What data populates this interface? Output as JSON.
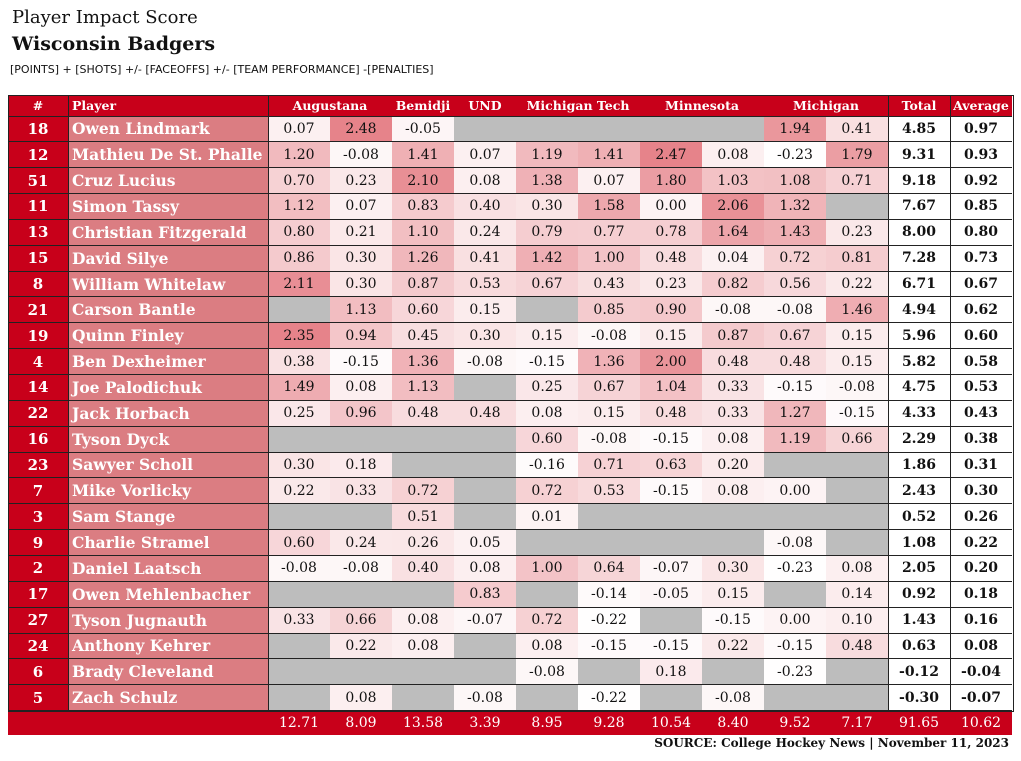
{
  "header": {
    "title": "Player Impact Score",
    "team": "Wisconsin Badgers",
    "formula": "[POINTS] + [SHOTS] +/- [FACEOFFS] +/- [TEAM PERFORMANCE] -[PENALTIES]"
  },
  "columns": {
    "number": "#",
    "player": "Player",
    "opponents": [
      "Augustana",
      "Bemidji",
      "UND",
      "Michigan Tech",
      "Minnesota",
      "Michigan"
    ],
    "total": "Total",
    "average": "Average"
  },
  "colors": {
    "header_bg": "#c8001a",
    "number_bg": "#c8001a",
    "name_bg": "#db7d82",
    "na_bg": "#bdbdbd",
    "scale_high": "#e6838a",
    "scale_low": "#ffffff"
  },
  "rows": [
    {
      "num": "18",
      "name": "Owen Lindmark",
      "games": [
        "0.07",
        "2.48",
        "-0.05",
        null,
        null,
        null,
        null,
        null,
        "1.94",
        "0.41"
      ],
      "total": "4.85",
      "avg": "0.97"
    },
    {
      "num": "12",
      "name": "Mathieu De St. Phalle",
      "games": [
        "1.20",
        "-0.08",
        "1.41",
        "0.07",
        "1.19",
        "1.41",
        "2.47",
        "0.08",
        "-0.23",
        "1.79"
      ],
      "total": "9.31",
      "avg": "0.93"
    },
    {
      "num": "51",
      "name": "Cruz Lucius",
      "games": [
        "0.70",
        "0.23",
        "2.10",
        "0.08",
        "1.38",
        "0.07",
        "1.80",
        "1.03",
        "1.08",
        "0.71"
      ],
      "total": "9.18",
      "avg": "0.92"
    },
    {
      "num": "11",
      "name": "Simon Tassy",
      "games": [
        "1.12",
        "0.07",
        "0.83",
        "0.40",
        "0.30",
        "1.58",
        "0.00",
        "2.06",
        "1.32",
        null
      ],
      "total": "7.67",
      "avg": "0.85"
    },
    {
      "num": "13",
      "name": "Christian Fitzgerald",
      "games": [
        "0.80",
        "0.21",
        "1.10",
        "0.24",
        "0.79",
        "0.77",
        "0.78",
        "1.64",
        "1.43",
        "0.23"
      ],
      "total": "8.00",
      "avg": "0.80"
    },
    {
      "num": "15",
      "name": "David Silye",
      "games": [
        "0.86",
        "0.30",
        "1.26",
        "0.41",
        "1.42",
        "1.00",
        "0.48",
        "0.04",
        "0.72",
        "0.81"
      ],
      "total": "7.28",
      "avg": "0.73"
    },
    {
      "num": "8",
      "name": "William Whitelaw",
      "games": [
        "2.11",
        "0.30",
        "0.87",
        "0.53",
        "0.67",
        "0.43",
        "0.23",
        "0.82",
        "0.56",
        "0.22"
      ],
      "total": "6.71",
      "avg": "0.67"
    },
    {
      "num": "21",
      "name": "Carson Bantle",
      "games": [
        null,
        "1.13",
        "0.60",
        "0.15",
        null,
        "0.85",
        "0.90",
        "-0.08",
        "-0.08",
        "1.46"
      ],
      "total": "4.94",
      "avg": "0.62"
    },
    {
      "num": "19",
      "name": "Quinn Finley",
      "games": [
        "2.35",
        "0.94",
        "0.45",
        "0.30",
        "0.15",
        "-0.08",
        "0.15",
        "0.87",
        "0.67",
        "0.15"
      ],
      "total": "5.96",
      "avg": "0.60"
    },
    {
      "num": "4",
      "name": "Ben Dexheimer",
      "games": [
        "0.38",
        "-0.15",
        "1.36",
        "-0.08",
        "-0.15",
        "1.36",
        "2.00",
        "0.48",
        "0.48",
        "0.15"
      ],
      "total": "5.82",
      "avg": "0.58"
    },
    {
      "num": "14",
      "name": "Joe Palodichuk",
      "games": [
        "1.49",
        "0.08",
        "1.13",
        null,
        "0.25",
        "0.67",
        "1.04",
        "0.33",
        "-0.15",
        "-0.08"
      ],
      "total": "4.75",
      "avg": "0.53"
    },
    {
      "num": "22",
      "name": "Jack Horbach",
      "games": [
        "0.25",
        "0.96",
        "0.48",
        "0.48",
        "0.08",
        "0.15",
        "0.48",
        "0.33",
        "1.27",
        "-0.15"
      ],
      "total": "4.33",
      "avg": "0.43"
    },
    {
      "num": "16",
      "name": "Tyson Dyck",
      "games": [
        null,
        null,
        null,
        null,
        "0.60",
        "-0.08",
        "-0.15",
        "0.08",
        "1.19",
        "0.66"
      ],
      "total": "2.29",
      "avg": "0.38"
    },
    {
      "num": "23",
      "name": "Sawyer Scholl",
      "games": [
        "0.30",
        "0.18",
        null,
        null,
        "-0.16",
        "0.71",
        "0.63",
        "0.20",
        null,
        null
      ],
      "total": "1.86",
      "avg": "0.31"
    },
    {
      "num": "7",
      "name": "Mike Vorlicky",
      "games": [
        "0.22",
        "0.33",
        "0.72",
        null,
        "0.72",
        "0.53",
        "-0.15",
        "0.08",
        "0.00",
        null
      ],
      "total": "2.43",
      "avg": "0.30"
    },
    {
      "num": "3",
      "name": "Sam Stange",
      "games": [
        null,
        null,
        "0.51",
        null,
        "0.01",
        null,
        null,
        null,
        null,
        null
      ],
      "total": "0.52",
      "avg": "0.26"
    },
    {
      "num": "9",
      "name": "Charlie Stramel",
      "games": [
        "0.60",
        "0.24",
        "0.26",
        "0.05",
        null,
        null,
        null,
        null,
        "-0.08",
        null
      ],
      "total": "1.08",
      "avg": "0.22"
    },
    {
      "num": "2",
      "name": "Daniel Laatsch",
      "games": [
        "-0.08",
        "-0.08",
        "0.40",
        "0.08",
        "1.00",
        "0.64",
        "-0.07",
        "0.30",
        "-0.23",
        "0.08"
      ],
      "total": "2.05",
      "avg": "0.20"
    },
    {
      "num": "17",
      "name": "Owen Mehlenbacher",
      "games": [
        null,
        null,
        null,
        "0.83",
        null,
        "-0.14",
        "-0.05",
        "0.15",
        null,
        "0.14"
      ],
      "total": "0.92",
      "avg": "0.18"
    },
    {
      "num": "27",
      "name": "Tyson Jugnauth",
      "games": [
        "0.33",
        "0.66",
        "0.08",
        "-0.07",
        "0.72",
        "-0.22",
        null,
        "-0.15",
        "0.00",
        "0.10"
      ],
      "total": "1.43",
      "avg": "0.16"
    },
    {
      "num": "24",
      "name": "Anthony Kehrer",
      "games": [
        null,
        "0.22",
        "0.08",
        null,
        "0.08",
        "-0.15",
        "-0.15",
        "0.22",
        "-0.15",
        "0.48"
      ],
      "total": "0.63",
      "avg": "0.08"
    },
    {
      "num": "6",
      "name": "Brady Cleveland",
      "games": [
        null,
        null,
        null,
        null,
        "-0.08",
        null,
        "0.18",
        null,
        "-0.23",
        null
      ],
      "total": "-0.12",
      "avg": "-0.04"
    },
    {
      "num": "5",
      "name": "Zach Schulz",
      "games": [
        null,
        "0.08",
        null,
        "-0.08",
        null,
        "-0.22",
        null,
        "-0.08",
        null,
        null
      ],
      "total": "-0.30",
      "avg": "-0.07"
    }
  ],
  "footer": {
    "game_totals": [
      "12.71",
      "8.09",
      "13.58",
      "3.39",
      "8.95",
      "9.28",
      "10.54",
      "8.40",
      "9.52",
      "7.17"
    ],
    "grand_total": "91.65",
    "grand_average": "10.62"
  },
  "source": "SOURCE: College Hockey News | November 11, 2023"
}
